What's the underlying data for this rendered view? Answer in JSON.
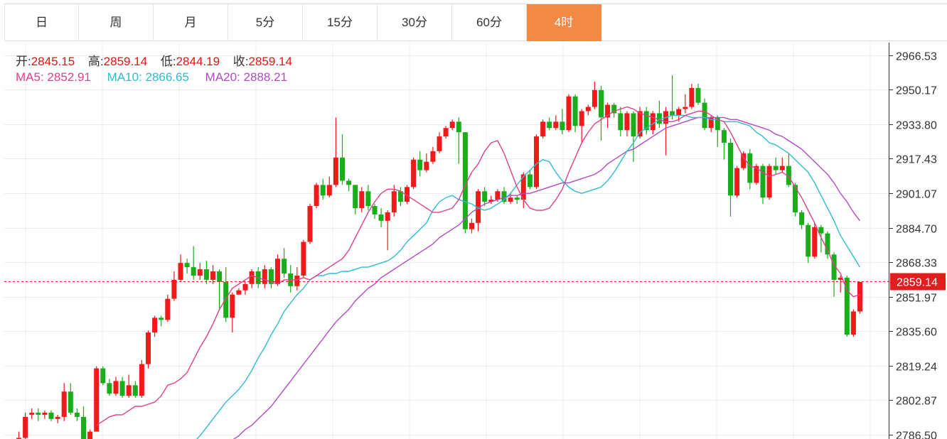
{
  "tabs": [
    {
      "label": "日",
      "active": false
    },
    {
      "label": "周",
      "active": false
    },
    {
      "label": "月",
      "active": false
    },
    {
      "label": "5分",
      "active": false
    },
    {
      "label": "15分",
      "active": false
    },
    {
      "label": "30分",
      "active": false
    },
    {
      "label": "60分",
      "active": false
    },
    {
      "label": "4时",
      "active": true
    }
  ],
  "ohlc": {
    "open_label": "开:",
    "open": "2845.15",
    "high_label": "高:",
    "high": "2859.14",
    "low_label": "低:",
    "low": "2844.19",
    "close_label": "收:",
    "close": "2859.14"
  },
  "ma": {
    "ma5_label": "MA5:",
    "ma5": "2852.91",
    "ma10_label": "MA10:",
    "ma10": "2866.65",
    "ma20_label": "MA20:",
    "ma20": "2888.21"
  },
  "colors": {
    "up": "#f01a1a",
    "down": "#1aad1a",
    "ma5": "#e0408a",
    "ma10": "#2fbcd0",
    "ma20": "#b04bc2",
    "active_tab": "#f28a45",
    "last_price": "#e11e1e"
  },
  "chart_data": {
    "type": "candlestick",
    "y_ticks": [
      2966.53,
      2950.17,
      2933.8,
      2917.43,
      2901.07,
      2884.7,
      2868.33,
      2851.97,
      2835.6,
      2819.24,
      2802.87,
      2786.5
    ],
    "ylim": [
      2784.5,
      2972.5
    ],
    "last_price": "2859.14",
    "grid": true,
    "candles": [
      [
        2778,
        2785,
        2772,
        2788
      ],
      [
        2785,
        2795,
        2783,
        2797
      ],
      [
        2796,
        2797,
        2794,
        2799
      ],
      [
        2797,
        2796,
        2793,
        2799
      ],
      [
        2796,
        2797,
        2794,
        2798
      ],
      [
        2797,
        2794,
        2793,
        2798
      ],
      [
        2794,
        2795,
        2792,
        2796
      ],
      [
        2795,
        2807,
        2793,
        2811
      ],
      [
        2807,
        2797,
        2796,
        2811
      ],
      [
        2797,
        2795,
        2793,
        2799
      ],
      [
        2795,
        2780,
        2778,
        2800
      ],
      [
        2780,
        2788,
        2780,
        2789
      ],
      [
        2788,
        2818,
        2788,
        2819
      ],
      [
        2818,
        2811,
        2810,
        2819
      ],
      [
        2811,
        2806,
        2805,
        2813
      ],
      [
        2806,
        2812,
        2805,
        2814
      ],
      [
        2812,
        2805,
        2804,
        2814
      ],
      [
        2805,
        2810,
        2804,
        2815
      ],
      [
        2810,
        2805,
        2804,
        2812
      ],
      [
        2805,
        2820,
        2804,
        2822
      ],
      [
        2820,
        2835,
        2818,
        2836
      ],
      [
        2835,
        2842,
        2833,
        2843
      ],
      [
        2842,
        2841,
        2838,
        2843
      ],
      [
        2841,
        2851,
        2840,
        2853
      ],
      [
        2851,
        2860,
        2850,
        2864
      ],
      [
        2860,
        2868,
        2859,
        2872
      ],
      [
        2868,
        2866,
        2863,
        2870
      ],
      [
        2866,
        2862,
        2860,
        2876
      ],
      [
        2862,
        2865,
        2860,
        2868
      ],
      [
        2865,
        2860,
        2858,
        2869
      ],
      [
        2860,
        2864,
        2858,
        2867
      ],
      [
        2864,
        2859,
        2846,
        2865
      ],
      [
        2859,
        2842,
        2840,
        2866
      ],
      [
        2842,
        2853,
        2835,
        2854
      ],
      [
        2853,
        2855,
        2853,
        2856
      ],
      [
        2855,
        2858,
        2853,
        2859
      ],
      [
        2858,
        2864,
        2856,
        2865
      ],
      [
        2864,
        2858,
        2856,
        2866
      ],
      [
        2858,
        2865,
        2856,
        2867
      ],
      [
        2865,
        2858,
        2856,
        2866
      ],
      [
        2858,
        2870,
        2857,
        2872
      ],
      [
        2870,
        2863,
        2861,
        2875
      ],
      [
        2863,
        2857,
        2854,
        2867
      ],
      [
        2857,
        2862,
        2855,
        2866
      ],
      [
        2862,
        2878,
        2861,
        2879
      ],
      [
        2878,
        2895,
        2877,
        2896
      ],
      [
        2895,
        2905,
        2894,
        2906
      ],
      [
        2905,
        2900,
        2898,
        2908
      ],
      [
        2900,
        2905,
        2899,
        2909
      ],
      [
        2905,
        2918,
        2904,
        2937
      ],
      [
        2918,
        2907,
        2905,
        2929
      ],
      [
        2907,
        2905,
        2902,
        2908
      ],
      [
        2905,
        2894,
        2891,
        2905
      ],
      [
        2894,
        2902,
        2892,
        2904
      ],
      [
        2902,
        2895,
        2893,
        2905
      ],
      [
        2895,
        2891,
        2889,
        2896
      ],
      [
        2891,
        2888,
        2885,
        2894
      ],
      [
        2888,
        2892,
        2874,
        2893
      ],
      [
        2892,
        2902,
        2890,
        2905
      ],
      [
        2902,
        2897,
        2895,
        2904
      ],
      [
        2897,
        2904,
        2896,
        2905
      ],
      [
        2904,
        2917,
        2903,
        2918
      ],
      [
        2917,
        2912,
        2909,
        2921
      ],
      [
        2912,
        2916,
        2911,
        2920
      ],
      [
        2916,
        2921,
        2915,
        2923
      ],
      [
        2921,
        2928,
        2920,
        2930
      ],
      [
        2928,
        2932,
        2927,
        2933
      ],
      [
        2932,
        2935,
        2931,
        2936
      ],
      [
        2935,
        2930,
        2915,
        2937
      ],
      [
        2930,
        2884,
        2882,
        2930
      ],
      [
        2884,
        2887,
        2882,
        2889
      ],
      [
        2887,
        2902,
        2883,
        2903
      ],
      [
        2902,
        2897,
        2895,
        2904
      ],
      [
        2897,
        2898,
        2896,
        2900
      ],
      [
        2898,
        2902,
        2897,
        2903
      ],
      [
        2902,
        2897,
        2896,
        2904
      ],
      [
        2897,
        2899,
        2896,
        2901
      ],
      [
        2899,
        2898,
        2896,
        2900
      ],
      [
        2898,
        2910,
        2894,
        2911
      ],
      [
        2910,
        2904,
        2903,
        2912
      ],
      [
        2904,
        2928,
        2903,
        2929
      ],
      [
        2928,
        2935,
        2927,
        2936
      ],
      [
        2935,
        2932,
        2931,
        2937
      ],
      [
        2932,
        2935,
        2931,
        2938
      ],
      [
        2935,
        2931,
        2929,
        2941
      ],
      [
        2931,
        2947,
        2930,
        2948
      ],
      [
        2947,
        2933,
        2930,
        2948
      ],
      [
        2933,
        2940,
        2925,
        2941
      ],
      [
        2940,
        2942,
        2938,
        2943
      ],
      [
        2942,
        2950,
        2941,
        2954
      ],
      [
        2950,
        2937,
        2926,
        2952
      ],
      [
        2937,
        2943,
        2932,
        2944
      ],
      [
        2943,
        2939,
        2937,
        2944
      ],
      [
        2939,
        2931,
        2928,
        2942
      ],
      [
        2931,
        2939,
        2928,
        2940
      ],
      [
        2939,
        2928,
        2916,
        2940
      ],
      [
        2928,
        2940,
        2927,
        2942
      ],
      [
        2940,
        2931,
        2929,
        2942
      ],
      [
        2931,
        2939,
        2929,
        2940
      ],
      [
        2939,
        2934,
        2932,
        2945
      ],
      [
        2934,
        2940,
        2919,
        2942
      ],
      [
        2940,
        2938,
        2936,
        2957
      ],
      [
        2938,
        2941,
        2935,
        2942
      ],
      [
        2941,
        2942,
        2939,
        2948
      ],
      [
        2942,
        2951,
        2941,
        2953
      ],
      [
        2951,
        2944,
        2943,
        2953
      ],
      [
        2944,
        2932,
        2931,
        2946
      ],
      [
        2932,
        2937,
        2930,
        2938
      ],
      [
        2937,
        2931,
        2923,
        2938
      ],
      [
        2931,
        2925,
        2917,
        2932
      ],
      [
        2925,
        2900,
        2890,
        2927
      ],
      [
        2900,
        2913,
        2899,
        2914
      ],
      [
        2913,
        2920,
        2912,
        2921
      ],
      [
        2920,
        2906,
        2903,
        2922
      ],
      [
        2906,
        2914,
        2905,
        2915
      ],
      [
        2914,
        2899,
        2896,
        2915
      ],
      [
        2899,
        2914,
        2898,
        2915
      ],
      [
        2914,
        2912,
        2910,
        2918
      ],
      [
        2912,
        2914,
        2911,
        2918
      ],
      [
        2914,
        2905,
        2904,
        2920
      ],
      [
        2905,
        2892,
        2890,
        2906
      ],
      [
        2892,
        2886,
        2884,
        2893
      ],
      [
        2886,
        2871,
        2868,
        2887
      ],
      [
        2871,
        2885,
        2870,
        2887
      ],
      [
        2885,
        2882,
        2873,
        2886
      ],
      [
        2882,
        2872,
        2870,
        2883
      ],
      [
        2872,
        2860,
        2852,
        2873
      ],
      [
        2860,
        2861,
        2854,
        2862
      ],
      [
        2861,
        2834,
        2833,
        2862
      ],
      [
        2834,
        2845,
        2833,
        2846
      ],
      [
        2845,
        2859,
        2844,
        2859
      ]
    ],
    "ma5": [
      2791,
      2793,
      2795,
      2796,
      2796,
      2798,
      2800,
      2800,
      2801,
      2802,
      2805,
      2810,
      2811,
      2813,
      2816,
      2822,
      2828,
      2833,
      2839,
      2846,
      2851,
      2856,
      2858,
      2860,
      2862,
      2861,
      2860,
      2859,
      2858,
      2860,
      2860,
      2860,
      2861,
      2860,
      2862,
      2864,
      2866,
      2868,
      2870,
      2874,
      2880,
      2886,
      2892,
      2897,
      2901,
      2903,
      2903,
      2902,
      2900,
      2898,
      2896,
      2894,
      2892,
      2892,
      2893,
      2894,
      2898,
      2905,
      2911,
      2915,
      2921,
      2925,
      2926,
      2920,
      2912,
      2904,
      2898,
      2894,
      2893,
      2893,
      2894,
      2898,
      2903,
      2911,
      2918,
      2925,
      2930,
      2934,
      2936,
      2938,
      2940,
      2941,
      2942,
      2941,
      2939,
      2938,
      2937,
      2936,
      2935,
      2935,
      2936,
      2938,
      2939,
      2940,
      2940,
      2938,
      2936,
      2935,
      2930,
      2924,
      2918,
      2914,
      2913,
      2911,
      2909,
      2910,
      2911,
      2909,
      2904,
      2899,
      2893,
      2887,
      2880,
      2874,
      2867,
      2863,
      2855,
      2852,
      2853
    ],
    "ma10": [
      2780,
      2783,
      2786,
      2790,
      2794,
      2798,
      2802,
      2805,
      2808,
      2812,
      2817,
      2823,
      2828,
      2834,
      2839,
      2845,
      2849,
      2853,
      2856,
      2860,
      2862,
      2862,
      2863,
      2863,
      2864,
      2864,
      2865,
      2866,
      2866,
      2867,
      2868,
      2869,
      2871,
      2874,
      2878,
      2881,
      2884,
      2887,
      2893,
      2897,
      2899,
      2900,
      2898,
      2897,
      2896,
      2894,
      2893,
      2894,
      2896,
      2898,
      2901,
      2905,
      2909,
      2912,
      2915,
      2917,
      2916,
      2911,
      2907,
      2904,
      2902,
      2901,
      2902,
      2903,
      2904,
      2907,
      2911,
      2916,
      2921,
      2925,
      2930,
      2932,
      2934,
      2936,
      2937,
      2938,
      2938,
      2938,
      2937,
      2937,
      2937,
      2936,
      2936,
      2935,
      2935,
      2935,
      2934,
      2933,
      2930,
      2928,
      2925,
      2924,
      2922,
      2920,
      2917,
      2914,
      2911,
      2906,
      2900,
      2894,
      2888,
      2881,
      2876,
      2871,
      2866
    ],
    "ma20": [
      2780,
      2782,
      2784,
      2786,
      2789,
      2791,
      2794,
      2797,
      2800,
      2804,
      2808,
      2812,
      2816,
      2820,
      2824,
      2828,
      2832,
      2836,
      2840,
      2843,
      2846,
      2850,
      2853,
      2856,
      2858,
      2861,
      2863,
      2865,
      2867,
      2869,
      2871,
      2873,
      2875,
      2877,
      2880,
      2882,
      2884,
      2886,
      2889,
      2892,
      2894,
      2896,
      2897,
      2898,
      2899,
      2900,
      2900,
      2901,
      2901,
      2902,
      2903,
      2904,
      2905,
      2906,
      2906,
      2907,
      2908,
      2909,
      2910,
      2912,
      2915,
      2917,
      2919,
      2921,
      2922,
      2924,
      2926,
      2928,
      2930,
      2932,
      2933,
      2934,
      2935,
      2936,
      2937,
      2937,
      2937,
      2937,
      2937,
      2936,
      2936,
      2935,
      2934,
      2933,
      2932,
      2931,
      2929,
      2928,
      2926,
      2924,
      2922,
      2919,
      2916,
      2913,
      2910,
      2906,
      2901,
      2897,
      2892,
      2888
    ]
  }
}
